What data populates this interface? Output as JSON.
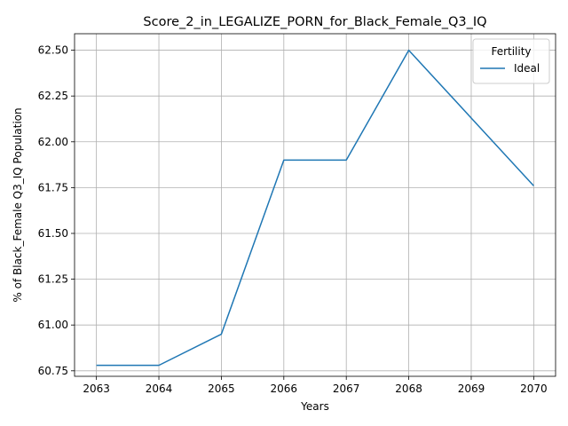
{
  "chart_data": {
    "type": "line",
    "title": "Score_2_in_LEGALIZE_PORN_for_Black_Female_Q3_IQ",
    "xlabel": "Years",
    "ylabel": "% of Black_Female Q3_IQ Population",
    "x": [
      2063,
      2064,
      2065,
      2066,
      2067,
      2068,
      2069,
      2070
    ],
    "xticks": [
      "2063",
      "2064",
      "2065",
      "2066",
      "2067",
      "2068",
      "2069",
      "2070"
    ],
    "yticks": [
      "60.75",
      "61.00",
      "61.25",
      "61.50",
      "61.75",
      "62.00",
      "62.25",
      "62.50"
    ],
    "xlim": [
      2062.65,
      2070.35
    ],
    "ylim": [
      60.72,
      62.59
    ],
    "grid": true,
    "legend": {
      "title": "Fertility",
      "placement": "top-right"
    },
    "series": [
      {
        "name": "Ideal",
        "color": "#1f77b4",
        "values": [
          60.78,
          60.78,
          60.95,
          61.9,
          61.9,
          62.5,
          62.13,
          61.76
        ]
      }
    ]
  }
}
